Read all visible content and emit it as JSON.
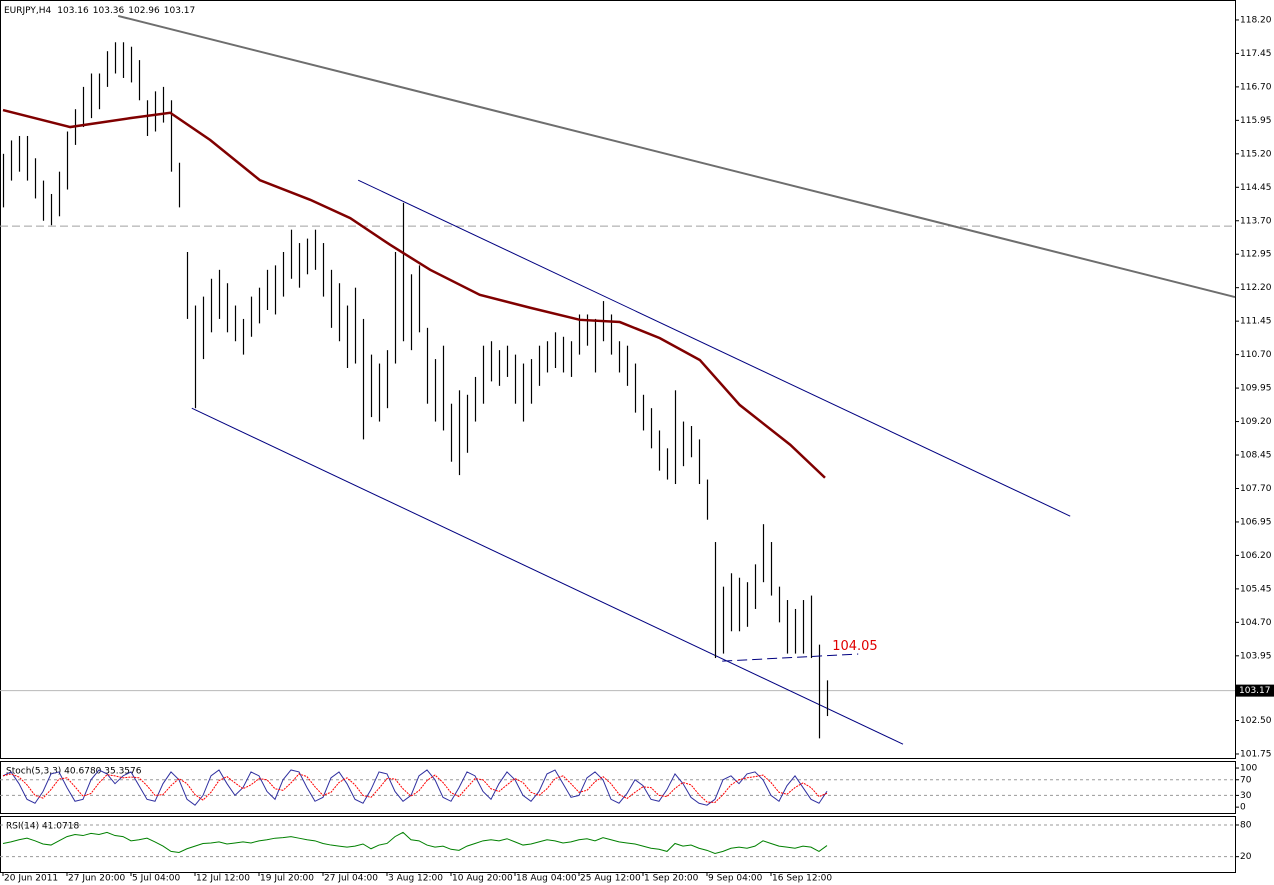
{
  "chart_data": [
    {
      "type": "ohlc",
      "title": "EURJPY,H4",
      "quote": [
        103.16,
        103.36,
        102.96,
        103.17
      ],
      "color": "#000000",
      "high": [
        115.2,
        115.5,
        115.6,
        115.6,
        115.1,
        114.6,
        114.3,
        114.8,
        115.7,
        116.2,
        116.7,
        117.0,
        117.0,
        117.5,
        117.7,
        117.7,
        117.6,
        117.3,
        116.4,
        116.6,
        116.7,
        116.4,
        115.0,
        113.0,
        111.8,
        112.0,
        112.4,
        112.6,
        112.3,
        111.8,
        111.5,
        112.0,
        112.2,
        112.6,
        112.7,
        113.0,
        113.5,
        113.2,
        113.3,
        113.5,
        113.2,
        112.6,
        112.3,
        111.8,
        112.2,
        111.5,
        110.7,
        110.5,
        110.8,
        113.0,
        114.1,
        112.5,
        112.7,
        111.3,
        110.6,
        110.9,
        109.6,
        109.9,
        109.8,
        110.2,
        110.9,
        111.0,
        110.8,
        110.9,
        110.7,
        110.5,
        110.6,
        110.9,
        111.0,
        111.2,
        111.1,
        111.0,
        111.6,
        111.6,
        111.5,
        111.9,
        111.6,
        111.0,
        110.9,
        110.5,
        109.8,
        109.5,
        109.0,
        108.6,
        109.9,
        109.2,
        109.1,
        108.8,
        107.9,
        106.5,
        105.5,
        105.8,
        105.7,
        105.6,
        106.0,
        106.9,
        106.5,
        105.5,
        105.2,
        105.0,
        105.2,
        105.3,
        104.2,
        103.4
      ],
      "low": [
        114.0,
        114.6,
        114.8,
        114.6,
        114.2,
        113.7,
        113.6,
        113.8,
        114.4,
        115.4,
        115.8,
        116.0,
        116.2,
        116.7,
        117.0,
        116.9,
        116.8,
        116.4,
        115.6,
        115.7,
        115.9,
        114.8,
        114.0,
        111.5,
        109.5,
        110.6,
        111.2,
        111.5,
        111.2,
        111.0,
        110.7,
        111.1,
        111.4,
        111.7,
        111.6,
        112.0,
        112.4,
        112.2,
        112.5,
        112.6,
        112.0,
        111.3,
        111.0,
        110.4,
        110.5,
        108.8,
        109.3,
        109.2,
        109.5,
        110.5,
        111.0,
        110.8,
        111.2,
        109.6,
        109.2,
        109.0,
        108.3,
        108.0,
        108.5,
        109.2,
        109.6,
        110.1,
        110.0,
        110.2,
        109.6,
        109.2,
        109.6,
        110.0,
        110.3,
        110.4,
        110.3,
        110.2,
        110.7,
        110.9,
        110.3,
        111.0,
        110.7,
        110.3,
        110.0,
        109.4,
        109.0,
        108.6,
        108.1,
        107.9,
        107.8,
        108.2,
        108.4,
        107.8,
        107.0,
        103.9,
        104.0,
        104.5,
        104.5,
        104.6,
        105.0,
        105.6,
        105.3,
        104.7,
        104.0,
        104.0,
        104.0,
        103.9,
        102.1,
        102.6
      ],
      "last": 103.17,
      "xlim": [
        -0.375,
        154
      ],
      "ylim": [
        101.66,
        118.58
      ],
      "xticks": [
        {
          "value": 0,
          "label": "20 Jun 2011"
        },
        {
          "value": 8,
          "label": "27 Jun 20:00"
        },
        {
          "value": 16,
          "label": "5 Jul 04:00"
        },
        {
          "value": 24,
          "label": "12 Jul 12:00"
        },
        {
          "value": 32,
          "label": "19 Jul 20:00"
        },
        {
          "value": 40,
          "label": "27 Jul 04:00"
        },
        {
          "value": 48,
          "label": "3 Aug 12:00"
        },
        {
          "value": 56,
          "label": "10 Aug 20:00"
        },
        {
          "value": 64,
          "label": "18 Aug 04:00"
        },
        {
          "value": 72,
          "label": "25 Aug 12:00"
        },
        {
          "value": 80,
          "label": "1 Sep 20:00"
        },
        {
          "value": 88,
          "label": "9 Sep 04:00"
        },
        {
          "value": 96,
          "label": "16 Sep 12:00"
        }
      ],
      "yticks": [
        {
          "value": 118.2,
          "label": "118.20"
        },
        117.45,
        {
          "value": 116.7,
          "label": "116.70"
        },
        115.95,
        {
          "value": 115.2,
          "label": "115.20"
        },
        114.45,
        {
          "value": 113.7,
          "label": "113.70"
        },
        112.95,
        {
          "value": 112.2,
          "label": "112.20"
        },
        111.45,
        {
          "value": 110.7,
          "label": "110.70"
        },
        109.95,
        {
          "value": 109.2,
          "label": "109.20"
        },
        108.45,
        {
          "value": 107.7,
          "label": "107.70"
        },
        106.95,
        {
          "value": 106.2,
          "label": "106.20"
        },
        105.45,
        {
          "value": 104.7,
          "label": "104.70"
        },
        103.95,
        {
          "value": 102.5,
          "label": "102.50"
        },
        101.75
      ],
      "moving_average": {
        "color": "#800000",
        "x": [
          0,
          8.4,
          15.9,
          20.9,
          25.9,
          32.1,
          38.4,
          43.4,
          48.4,
          53.4,
          59.6,
          65.9,
          72.1,
          77.1,
          82.1,
          87.1,
          92.1,
          98.4,
          102.75
        ],
        "values": [
          116.18,
          115.8,
          116.0,
          116.12,
          115.51,
          114.61,
          114.17,
          113.76,
          113.16,
          112.6,
          112.04,
          111.75,
          111.48,
          111.43,
          111.07,
          110.58,
          109.57,
          108.68,
          107.94
        ]
      },
      "trendlines": [
        {
          "color": "#6e6e6e",
          "x": [
            14.4,
            154
          ],
          "values": [
            118.29,
            111.99
          ]
        },
        {
          "color": "#000080",
          "x": [
            44.4,
            133.4
          ],
          "values": [
            114.61,
            107.08
          ]
        },
        {
          "color": "#000080",
          "x": [
            23.6,
            112.5
          ],
          "values": [
            109.5,
            101.97
          ]
        }
      ],
      "hline": {
        "color": "#a0a0a0",
        "value": 113.58
      },
      "level": {
        "color": "#000080",
        "x": [
          89.9,
          106.9
        ],
        "values": [
          103.83,
          103.99
        ],
        "label": 104.05
      }
    },
    {
      "type": "oscillator",
      "title": "Stoch(5,3,3) 40.6780 35.3576",
      "xlim": [
        -0.375,
        154
      ],
      "ylim": [
        -15,
        118
      ],
      "yticks": [
        100,
        70,
        30,
        0
      ],
      "levels": [
        70,
        30
      ],
      "series": [
        {
          "color": "#3030a0",
          "values": [
            80,
            90,
            60,
            20,
            10,
            40,
            85,
            90,
            50,
            15,
            20,
            70,
            95,
            85,
            60,
            80,
            90,
            55,
            20,
            15,
            60,
            90,
            70,
            20,
            5,
            30,
            80,
            95,
            60,
            30,
            50,
            90,
            80,
            40,
            20,
            70,
            95,
            90,
            50,
            15,
            25,
            75,
            90,
            60,
            20,
            10,
            45,
            90,
            85,
            40,
            15,
            30,
            80,
            95,
            70,
            25,
            15,
            50,
            90,
            80,
            40,
            20,
            60,
            90,
            70,
            30,
            15,
            40,
            85,
            95,
            60,
            25,
            30,
            75,
            90,
            70,
            20,
            10,
            35,
            70,
            55,
            20,
            15,
            45,
            85,
            60,
            25,
            10,
            5,
            20,
            70,
            80,
            60,
            85,
            90,
            70,
            30,
            15,
            55,
            80,
            50,
            20,
            10,
            40.678
          ]
        },
        {
          "color": "#ff0000",
          "dashed": true,
          "values": [
            80,
            85,
            77,
            57,
            30,
            23,
            45,
            72,
            75,
            52,
            28,
            35,
            62,
            83,
            80,
            75,
            77,
            75,
            55,
            30,
            32,
            55,
            73,
            60,
            32,
            18,
            38,
            68,
            78,
            62,
            47,
            57,
            73,
            70,
            47,
            43,
            62,
            85,
            78,
            52,
            30,
            38,
            63,
            75,
            57,
            30,
            25,
            48,
            73,
            72,
            47,
            28,
            42,
            68,
            82,
            63,
            37,
            27,
            50,
            73,
            70,
            47,
            40,
            57,
            73,
            63,
            38,
            30,
            47,
            73,
            80,
            60,
            38,
            43,
            65,
            78,
            60,
            33,
            22,
            38,
            52,
            50,
            30,
            27,
            48,
            63,
            57,
            32,
            13,
            12,
            32,
            57,
            70,
            75,
            78,
            82,
            63,
            38,
            33,
            50,
            62,
            50,
            27,
            35.3576
          ]
        }
      ]
    },
    {
      "type": "oscillator",
      "title": "RSI(14) 41.0718",
      "xlim": [
        -0.375,
        154
      ],
      "ylim": [
        -9,
        97
      ],
      "yticks": [
        80,
        20
      ],
      "levels": [
        80,
        20
      ],
      "series": [
        {
          "color": "#008000",
          "values": [
            45,
            48,
            52,
            55,
            50,
            44,
            42,
            50,
            58,
            62,
            60,
            64,
            62,
            66,
            60,
            58,
            50,
            52,
            55,
            48,
            40,
            30,
            28,
            35,
            40,
            45,
            46,
            48,
            44,
            46,
            48,
            46,
            50,
            52,
            55,
            56,
            58,
            55,
            52,
            50,
            45,
            42,
            40,
            38,
            40,
            44,
            35,
            42,
            45,
            58,
            66,
            52,
            50,
            42,
            38,
            40,
            34,
            32,
            40,
            45,
            50,
            52,
            50,
            54,
            48,
            42,
            44,
            48,
            52,
            50,
            46,
            48,
            52,
            54,
            50,
            56,
            52,
            48,
            46,
            44,
            40,
            36,
            34,
            30,
            45,
            40,
            42,
            36,
            32,
            26,
            30,
            36,
            38,
            36,
            40,
            50,
            45,
            40,
            38,
            36,
            40,
            38,
            30,
            41.0718
          ]
        }
      ]
    }
  ]
}
